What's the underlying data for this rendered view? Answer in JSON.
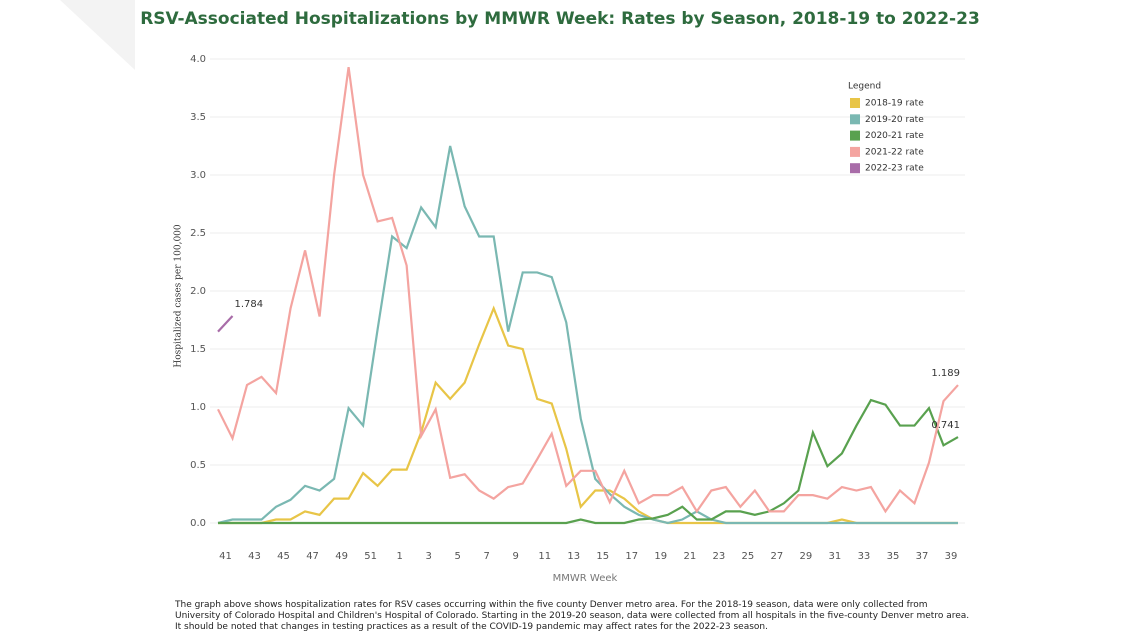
{
  "chart_data": {
    "type": "line",
    "title": "RSV-Associated Hospitalizations by MMWR Week: Rates by Season, 2018-19 to 2022-23",
    "x_label": "MMWR Week",
    "y_label": "Hospitalized cases per 100,000",
    "legend_title": "Legend",
    "legend_position": "top-right",
    "grid": true,
    "categories": [
      null,
      "41",
      null,
      "43",
      null,
      "45",
      null,
      "47",
      null,
      "49",
      null,
      "51",
      null,
      "1",
      null,
      "3",
      null,
      "5",
      null,
      "7",
      null,
      "9",
      null,
      "11",
      null,
      "13",
      null,
      "15",
      null,
      "17",
      null,
      "19",
      null,
      "21",
      null,
      "23",
      null,
      "25",
      null,
      "27",
      null,
      "29",
      null,
      "31",
      null,
      "33",
      null,
      "35",
      null,
      "37",
      null,
      "39"
    ],
    "ylim": [
      0,
      4
    ],
    "yticks": [
      {
        "value": 0,
        "label": "0.0"
      },
      {
        "value": 0.5,
        "label": "0.5"
      },
      {
        "value": 1,
        "label": "1.0"
      },
      {
        "value": 1.5,
        "label": "1.5"
      },
      {
        "value": 2,
        "label": "2.0"
      },
      {
        "value": 2.5,
        "label": "2.5"
      },
      {
        "value": 3,
        "label": "3.0"
      },
      {
        "value": 3.5,
        "label": "3.5"
      },
      {
        "value": 4,
        "label": "4.0"
      }
    ],
    "series": [
      {
        "name": "2018-19 rate",
        "color": "#e8c547",
        "values": [
          0,
          0,
          0,
          0,
          0.03,
          0.03,
          0.1,
          0.07,
          0.21,
          0.21,
          0.43,
          0.32,
          0.46,
          0.46,
          0.78,
          1.21,
          1.07,
          1.21,
          1.54,
          1.85,
          1.53,
          1.5,
          1.07,
          1.03,
          0.64,
          0.14,
          0.28,
          0.28,
          0.21,
          0.1,
          0.03,
          0,
          0,
          0,
          0,
          0,
          0,
          0,
          0,
          0,
          0,
          0,
          0,
          0.03,
          0,
          0,
          0,
          0,
          0,
          0,
          0,
          0
        ]
      },
      {
        "name": "2019-20 rate",
        "color": "#7ab8b2",
        "values": [
          0,
          0.03,
          0.03,
          0.03,
          0.14,
          0.2,
          0.32,
          0.28,
          0.38,
          0.99,
          0.84,
          1.67,
          2.47,
          2.37,
          2.72,
          2.55,
          3.25,
          2.73,
          2.47,
          2.47,
          1.65,
          2.16,
          2.16,
          2.12,
          1.73,
          0.9,
          0.38,
          0.25,
          0.14,
          0.07,
          0.03,
          0,
          0.03,
          0.1,
          0.03,
          0,
          0,
          0,
          0,
          0,
          0,
          0,
          0,
          0,
          0,
          0,
          0,
          0,
          0,
          0,
          0,
          0
        ]
      },
      {
        "name": "2020-21 rate",
        "color": "#59a14f",
        "values": [
          0,
          0,
          0,
          0,
          0,
          0,
          0,
          0,
          0,
          0,
          0,
          0,
          0,
          0,
          0,
          0,
          0,
          0,
          0,
          0,
          0,
          0,
          0,
          0,
          0,
          0.03,
          0,
          0,
          0,
          0.03,
          0.04,
          0.07,
          0.14,
          0.03,
          0.03,
          0.1,
          0.1,
          0.07,
          0.1,
          0.17,
          0.28,
          0.78,
          0.49,
          0.6,
          0.84,
          1.06,
          1.02,
          0.84,
          0.84,
          0.99,
          0.67,
          0.741
        ]
      },
      {
        "name": "2021-22 rate",
        "color": "#f4a4a0",
        "values": [
          0.98,
          0.73,
          1.19,
          1.26,
          1.12,
          1.85,
          2.35,
          1.78,
          3.0,
          3.93,
          3.0,
          2.6,
          2.63,
          2.22,
          0.75,
          0.98,
          0.39,
          0.42,
          0.28,
          0.21,
          0.31,
          0.34,
          0.55,
          0.77,
          0.32,
          0.45,
          0.45,
          0.18,
          0.45,
          0.17,
          0.24,
          0.24,
          0.31,
          0.1,
          0.28,
          0.31,
          0.14,
          0.28,
          0.1,
          0.1,
          0.24,
          0.24,
          0.21,
          0.31,
          0.28,
          0.31,
          0.1,
          0.28,
          0.17,
          0.52,
          1.05,
          1.189
        ]
      },
      {
        "name": "2022-23 rate",
        "color": "#a86ca8",
        "values": [
          1.65,
          1.784,
          null,
          null,
          null,
          null,
          null,
          null,
          null,
          null,
          null,
          null,
          null,
          null,
          null,
          null,
          null,
          null,
          null,
          null,
          null,
          null,
          null,
          null,
          null,
          null,
          null,
          null,
          null,
          null,
          null,
          null,
          null,
          null,
          null,
          null,
          null,
          null,
          null,
          null,
          null,
          null,
          null,
          null,
          null,
          null,
          null,
          null,
          null,
          null,
          null,
          null
        ]
      }
    ],
    "labeled_points": [
      {
        "series": 4,
        "index": 1
      },
      {
        "series": 3,
        "index": 51
      },
      {
        "series": 2,
        "index": 51
      }
    ],
    "footnote": "The graph above shows hospitalization rates for RSV cases occurring within the five county Denver metro area. For the 2018-19 season, data were only collected from University of Colorado Hospital and Children's Hospital of Colorado. Starting in the 2019-20 season, data were collected from all hospitals in the five-county Denver metro area. It should be noted that changes in testing practices as a result of the COVID-19 pandemic may affect rates for the 2022-23 season."
  }
}
